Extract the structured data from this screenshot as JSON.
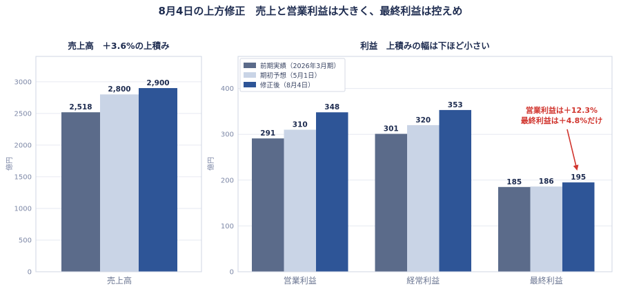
{
  "figure": {
    "title": "8月4日の上方修正　売上と営業利益は大きく、最終利益は控えめ"
  },
  "colors": {
    "prev": "#5b6b8a",
    "plan": "#c9d4e6",
    "revised": "#2e5597",
    "annotation": "#d1362f"
  },
  "chart_data": [
    {
      "type": "bar",
      "title": "売上高　＋3.6%の上積み",
      "ylabel": "億円",
      "ylim": [
        0,
        3400
      ],
      "yticks": [
        0,
        500,
        1000,
        1500,
        2000,
        2500,
        3000
      ],
      "grid": true,
      "categories": [
        "売上高"
      ],
      "series": [
        {
          "values": [
            2518
          ],
          "labels": [
            "2,518"
          ]
        },
        {
          "values": [
            2800
          ],
          "labels": [
            "2,800"
          ]
        },
        {
          "values": [
            2900
          ],
          "labels": [
            "2,900"
          ]
        }
      ]
    },
    {
      "type": "bar",
      "title": "利益　上積みの幅は下ほど小さい",
      "ylabel": "億円",
      "ylim": [
        0,
        470
      ],
      "yticks": [
        0,
        100,
        200,
        300,
        400
      ],
      "grid": true,
      "legend_position": "top-left",
      "categories": [
        "営業利益",
        "経常利益",
        "最終利益"
      ],
      "series": [
        {
          "name": "前期実績（2026年3月期）",
          "values": [
            291,
            301,
            185
          ],
          "labels": [
            "291",
            "301",
            "185"
          ]
        },
        {
          "name": "期初予想（5月1日）",
          "values": [
            310,
            320,
            186
          ],
          "labels": [
            "310",
            "320",
            "186"
          ]
        },
        {
          "name": "修正後（8月4日）",
          "values": [
            348,
            353,
            195
          ],
          "labels": [
            "348",
            "353",
            "195"
          ]
        }
      ],
      "annotation": {
        "lines": [
          "営業利益は＋12.3%",
          "最終利益は＋4.8%だけ"
        ],
        "target_category": "最終利益",
        "target_series": 2
      }
    }
  ]
}
